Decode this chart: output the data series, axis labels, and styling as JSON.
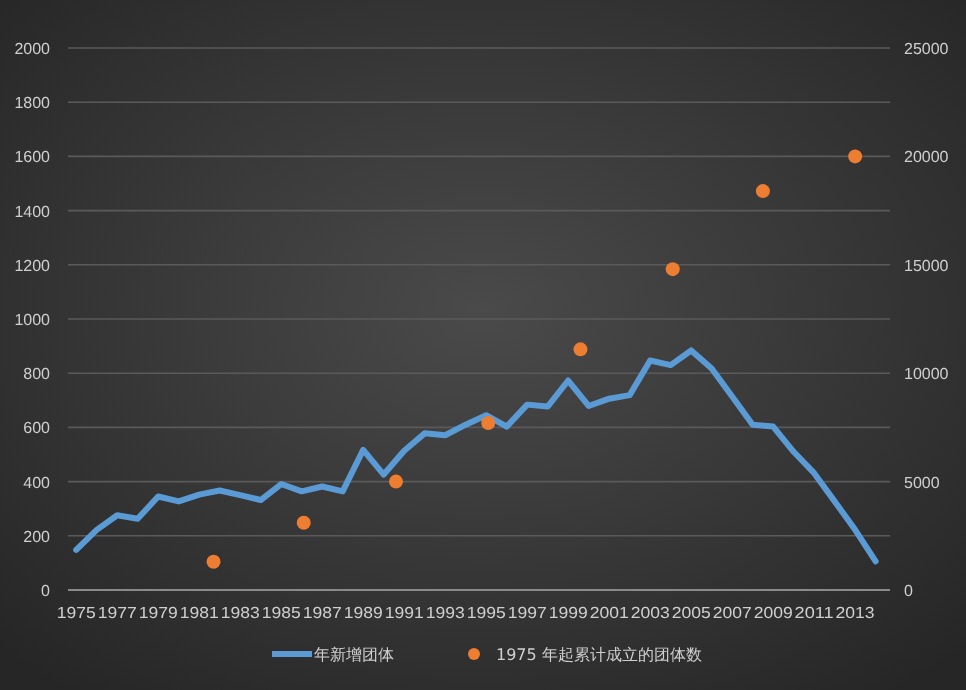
{
  "chart_data": {
    "type": "line",
    "x": [
      1975,
      1976,
      1977,
      1978,
      1979,
      1980,
      1981,
      1982,
      1983,
      1984,
      1985,
      1986,
      1987,
      1988,
      1989,
      1990,
      1991,
      1992,
      1993,
      1994,
      1995,
      1996,
      1997,
      1998,
      1999,
      2000,
      2001,
      2002,
      2003,
      2004,
      2005,
      2006,
      2007,
      2008,
      2009,
      2010,
      2011,
      2012,
      2013,
      2014
    ],
    "series": [
      {
        "name": "年新增团体",
        "color": "#5b9bd5",
        "values": [
          148,
          222,
          276,
          263,
          345,
          327,
          352,
          367,
          350,
          332,
          391,
          364,
          382,
          364,
          517,
          426,
          514,
          578,
          571,
          610,
          645,
          603,
          684,
          677,
          773,
          679,
          706,
          719,
          847,
          830,
          884,
          817,
          714,
          610,
          603,
          510,
          431,
          327,
          222,
          106
        ]
      },
      {
        "name": "1975 年起累计成立的团体数",
        "type": "scatter",
        "axis": "y2",
        "color": "#ed7d31",
        "marker": "circle",
        "x": [
          1981.7,
          1986.1,
          1990.6,
          1995.1,
          1999.6,
          2004.1,
          2008.5,
          2013.0
        ],
        "values": [
          1300,
          3100,
          5000,
          7700,
          11100,
          14800,
          18400,
          20000
        ]
      }
    ],
    "xlim": [
      1974.6,
      2014.7
    ],
    "xticks": [
      1975,
      1977,
      1979,
      1981,
      1983,
      1985,
      1987,
      1989,
      1991,
      1993,
      1995,
      1997,
      1999,
      2001,
      2003,
      2005,
      2007,
      2009,
      2011,
      2013
    ],
    "ylim": [
      0,
      2000
    ],
    "yticks": [
      0,
      200,
      400,
      600,
      800,
      1000,
      1200,
      1400,
      1600,
      1800,
      2000
    ],
    "y2lim": [
      0,
      25000
    ],
    "y2ticks": [
      0,
      5000,
      10000,
      15000,
      20000,
      25000
    ],
    "grid": "y",
    "legend": "bottom"
  }
}
